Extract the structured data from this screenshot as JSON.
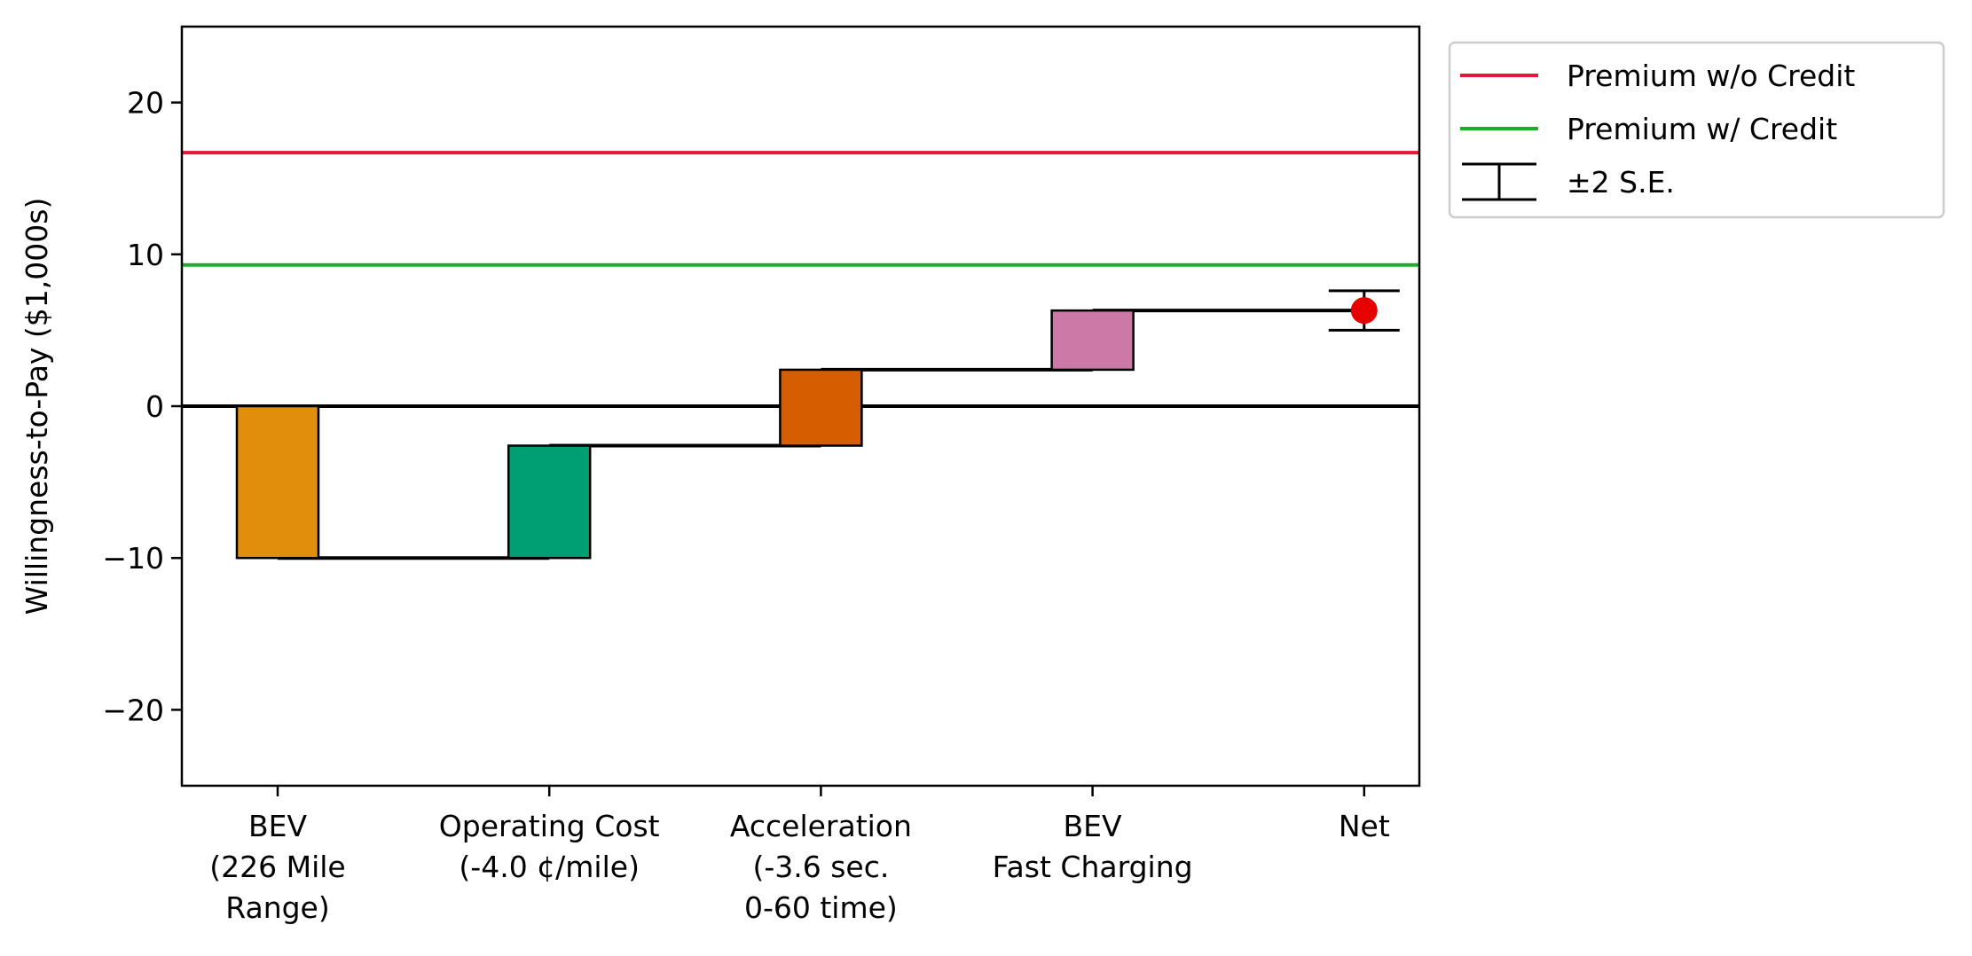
{
  "chart_data": {
    "type": "bar",
    "subtype": "waterfall",
    "title": "",
    "xlabel": "",
    "ylabel": "Willingness-to-Pay ($1,000s)",
    "ylim": [
      -25,
      25
    ],
    "yticks": [
      -20,
      -10,
      0,
      10,
      20
    ],
    "ytick_labels": [
      "−20",
      "−10",
      "0",
      "10",
      "20"
    ],
    "grid": false,
    "legend_position": "outside-top-right",
    "categories": [
      "BEV\n(226 Mile\nRange)",
      "Operating Cost\n(-4.0 ¢/mile)",
      "Acceleration\n(-3.6 sec.\n0-60 time)",
      "BEV\nFast Charging",
      "Net"
    ],
    "steps": [
      {
        "category": "BEV\n(226 Mile\nRange)",
        "value": -10.0,
        "start": 0.0,
        "end": -10.0,
        "color": "#E08E0B"
      },
      {
        "category": "Operating Cost\n(-4.0 ¢/mile)",
        "value": 7.4,
        "start": -10.0,
        "end": -2.6,
        "color": "#009E73"
      },
      {
        "category": "Acceleration\n(-3.6 sec.\n0-60 time)",
        "value": 5.0,
        "start": -2.6,
        "end": 2.4,
        "color": "#D55E00"
      },
      {
        "category": "BEV\nFast Charging",
        "value": 3.9,
        "start": 2.4,
        "end": 6.3,
        "color": "#CC79A7"
      }
    ],
    "net": {
      "category": "Net",
      "value": 6.3,
      "error_low": 5.0,
      "error_high": 7.6,
      "color": "#E60000"
    },
    "reference_lines": [
      {
        "name": "Premium w/o Credit",
        "value": 16.7,
        "color": "#E8173A"
      },
      {
        "name": "Premium w/ Credit",
        "value": 9.3,
        "color": "#1AAF2A"
      }
    ],
    "zero_line": {
      "value": 0,
      "color": "#000000"
    },
    "legend": [
      {
        "label": "Premium w/o Credit",
        "kind": "line",
        "color": "#E8173A"
      },
      {
        "label": "Premium w/ Credit",
        "kind": "line",
        "color": "#1AAF2A"
      },
      {
        "label": "±2 S.E.",
        "kind": "errorbar",
        "color": "#000000"
      }
    ]
  }
}
